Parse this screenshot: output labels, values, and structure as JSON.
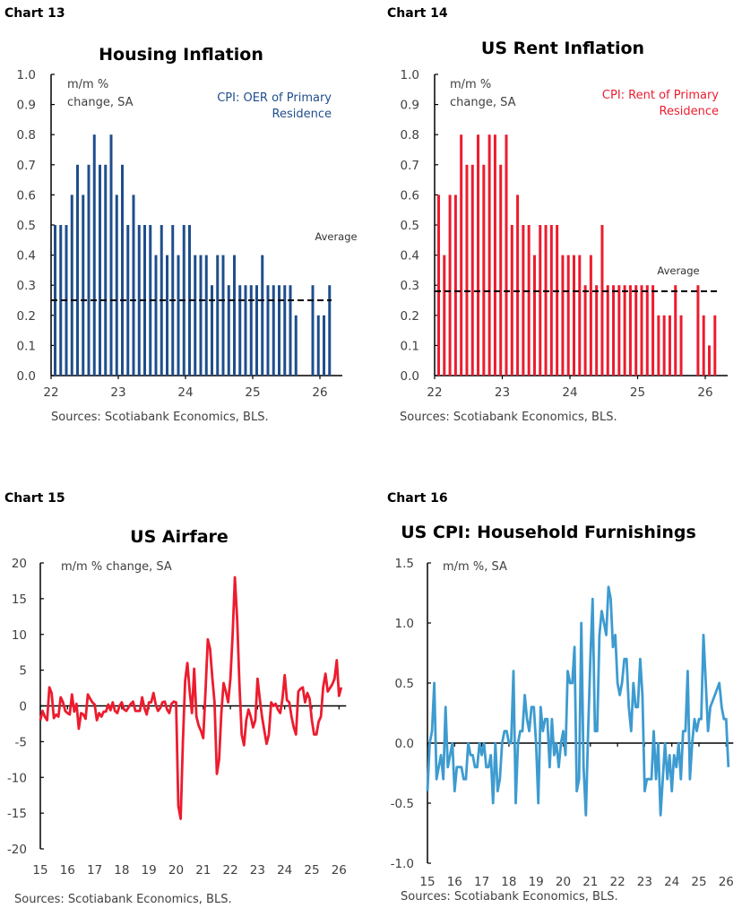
{
  "chart_data": [
    {
      "type": "bar",
      "label": "Chart 13",
      "title": "Housing Inflation",
      "ylabel_lines": [
        "m/m %",
        "change, SA"
      ],
      "legend_lines": [
        "CPI: OER of Primary",
        "Residence"
      ],
      "series_name": "CPI: OER of Primary Residence",
      "average_label": "Average",
      "average": 0.25,
      "source": "Sources: Scotiabank Economics, BLS.",
      "color": "#1f4e8c",
      "ylim": [
        0,
        1.0
      ],
      "yticks": [
        "0.0",
        "0.1",
        "0.2",
        "0.3",
        "0.4",
        "0.5",
        "0.6",
        "0.7",
        "0.8",
        "0.9",
        "1.0"
      ],
      "xticks": [
        "22",
        "23",
        "24",
        "25",
        "26"
      ],
      "frequency": "monthly",
      "values_by_year": {
        "2022": [
          0.5,
          0.5,
          0.5,
          0.6,
          0.7,
          0.6,
          0.7,
          0.8,
          0.7,
          0.7,
          0.8,
          0.6
        ],
        "2023": [
          0.7,
          0.5,
          0.6,
          0.5,
          0.5,
          0.5,
          0.4,
          0.5,
          0.4,
          0.5,
          0.4,
          0.5
        ],
        "2024": [
          0.5,
          0.4,
          0.4,
          0.4,
          0.3,
          0.4,
          0.4,
          0.3,
          0.4,
          0.3,
          0.3,
          0.3
        ],
        "2025": [
          0.3,
          0.4,
          0.3,
          0.3,
          0.3,
          0.3,
          0.3,
          0.2,
          null,
          null,
          0.3,
          0.2
        ],
        "2026": [
          0.2,
          0.3
        ]
      }
    },
    {
      "type": "bar",
      "label": "Chart 14",
      "title": "US Rent Inflation",
      "ylabel_lines": [
        "m/m %",
        "change, SA"
      ],
      "legend_lines": [
        "CPI: Rent of Primary",
        "Residence"
      ],
      "series_name": "CPI: Rent of Primary Residence",
      "average_label": "Average",
      "average": 0.28,
      "source": "Sources: Scotiabank Economics, BLS.",
      "color": "#ec1c2e",
      "ylim": [
        0,
        1.0
      ],
      "yticks": [
        "0.0",
        "0.1",
        "0.2",
        "0.3",
        "0.4",
        "0.5",
        "0.6",
        "0.7",
        "0.8",
        "0.9",
        "1.0"
      ],
      "xticks": [
        "22",
        "23",
        "24",
        "25",
        "26"
      ],
      "frequency": "monthly",
      "values_by_year": {
        "2022": [
          0.6,
          0.4,
          0.6,
          0.6,
          0.8,
          0.7,
          0.7,
          0.8,
          0.7,
          0.8,
          0.8,
          0.7
        ],
        "2023": [
          0.8,
          0.5,
          0.6,
          0.5,
          0.5,
          0.4,
          0.5,
          0.5,
          0.5,
          0.5,
          0.4,
          0.4
        ],
        "2024": [
          0.4,
          0.4,
          0.3,
          0.4,
          0.3,
          0.5,
          0.3,
          0.3,
          0.3,
          0.3,
          0.3,
          0.3
        ],
        "2025": [
          0.3,
          0.3,
          0.3,
          0.2,
          0.2,
          0.2,
          0.3,
          0.2,
          null,
          null,
          0.3,
          0.2
        ],
        "2026": [
          0.1,
          0.2
        ]
      }
    },
    {
      "type": "line",
      "label": "Chart 15",
      "title": "US Airfare",
      "ylabel_lines": [
        "m/m % change, SA"
      ],
      "source": "Sources: Scotiabank Economics, BLS.",
      "color": "#ec1c2e",
      "ylim": [
        -20,
        20
      ],
      "yticks": [
        "-20",
        "-15",
        "-10",
        "-5",
        "0",
        "5",
        "10",
        "15",
        "20"
      ],
      "xticks": [
        "15",
        "16",
        "17",
        "18",
        "19",
        "20",
        "21",
        "22",
        "23",
        "24",
        "25",
        "26"
      ],
      "frequency": "monthly",
      "values_by_year": {
        "2015": [
          -2,
          -0.7,
          -1.5,
          -2,
          2.6,
          1.8,
          -1.7,
          -1.2,
          -1.5,
          1.2,
          0.5,
          -0.7
        ],
        "2016": [
          -1,
          -1.2,
          1.6,
          -0.8,
          0.3,
          -3.2,
          -1,
          -1.2,
          -1.8,
          1.6,
          1,
          0.5
        ],
        "2017": [
          0.2,
          -2,
          -1,
          -1.5,
          -0.8,
          -0.8,
          0.2,
          -0.6,
          0.5,
          -0.7,
          -1,
          0
        ],
        "2018": [
          0.5,
          -0.5,
          -0.7,
          -0.2,
          0.3,
          0.6,
          -0.7,
          -0.7,
          -0.7,
          1.2,
          -0.3,
          -1.2
        ],
        "2019": [
          0.5,
          0.5,
          1.8,
          0.2,
          -0.7,
          -0.3,
          0.5,
          0.6,
          -0.5,
          -1,
          0.3,
          0.6
        ],
        "2020": [
          0.5,
          -14,
          -15.8,
          -5,
          3.5,
          6,
          2,
          -1,
          5.2,
          -1.5,
          -2.8,
          -3.5
        ],
        "2021": [
          -4.5,
          2,
          9.3,
          8,
          4,
          0.5,
          -9.5,
          -7.5,
          -1,
          3.2,
          2,
          0.5
        ],
        "2022": [
          3.8,
          10,
          18,
          12,
          3,
          -4,
          -5.5,
          -2,
          -0.5,
          -1.5,
          -3,
          -2
        ],
        "2023": [
          3.8,
          1,
          -1.5,
          -3.5,
          -5.3,
          -4,
          0.5,
          0,
          0.3,
          -0.5,
          -1,
          1
        ],
        "2024": [
          4.3,
          0.8,
          0.5,
          -1.5,
          -3,
          -4,
          2,
          2.4,
          2.6,
          0.5,
          1.8,
          1
        ],
        "2025": [
          -2,
          -4,
          -4,
          -2.2,
          -1.5,
          2.6,
          4.5,
          2,
          2.5,
          3,
          3.8,
          6.4
        ],
        "2026": [
          1.4,
          2.6
        ]
      }
    },
    {
      "type": "line",
      "label": "Chart 16",
      "title": "US CPI: Household Furnishings",
      "ylabel_lines": [
        "m/m %, SA"
      ],
      "source": "Sources: Scotiabank Economics, BLS.",
      "color": "#3d9bd0",
      "ylim": [
        -1.0,
        1.5
      ],
      "yticks": [
        "-1.0",
        "-0.5",
        "0.0",
        "0.5",
        "1.0",
        "1.5"
      ],
      "xticks": [
        "15",
        "16",
        "17",
        "18",
        "19",
        "20",
        "21",
        "22",
        "23",
        "24",
        "25",
        "26"
      ],
      "frequency": "monthly",
      "values_by_year": {
        "2015": [
          -0.4,
          0,
          0.1,
          0.5,
          -0.3,
          -0.2,
          -0.1,
          -0.3,
          0.3,
          -0.2,
          -0.1,
          0
        ],
        "2016": [
          -0.4,
          -0.2,
          -0.2,
          -0.2,
          -0.3,
          -0.3,
          0,
          -0.1,
          -0.1,
          -0.2,
          -0.2,
          0
        ],
        "2017": [
          -0.1,
          0,
          -0.2,
          -0.2,
          -0.1,
          -0.5,
          0,
          -0.4,
          -0.3,
          0,
          0.1,
          0.1
        ],
        "2018": [
          0,
          0,
          0.6,
          -0.5,
          0,
          0.1,
          0.1,
          0.4,
          0.2,
          0.1,
          0.3,
          0.3
        ],
        "2019": [
          0,
          -0.5,
          0.3,
          0.1,
          0.2,
          0.2,
          -0.2,
          0.2,
          -0.1,
          0,
          -0.2,
          0
        ],
        "2020": [
          0.1,
          -0.1,
          0.6,
          0.5,
          0.5,
          0.8,
          -0.4,
          -0.3,
          1.0,
          -0.2,
          -0.6,
          0.1
        ],
        "2021": [
          0.7,
          1.2,
          0.1,
          0.1,
          0.9,
          1.1,
          1.0,
          0.9,
          1.3,
          1.2,
          0.8,
          0.9
        ],
        "2022": [
          0.5,
          0.4,
          0.5,
          0.7,
          0.7,
          0.3,
          0.1,
          0.5,
          0.3,
          0.3,
          0.7,
          0.4
        ],
        "2023": [
          -0.4,
          -0.3,
          -0.3,
          -0.3,
          0.1,
          -0.3,
          0,
          -0.6,
          -0.3,
          0,
          -0.3,
          -0.1
        ],
        "2024": [
          -0.4,
          -0.1,
          -0.2,
          0,
          -0.3,
          0.1,
          0.1,
          0.6,
          -0.3,
          0,
          0.2,
          0.1
        ],
        "2025": [
          0.2,
          0.2,
          0.9,
          0.5,
          0.1,
          0.3,
          0.35,
          0.4,
          0.45,
          0.5,
          0.3,
          0.2
        ],
        "2026": [
          0.2,
          -0.2
        ]
      }
    }
  ]
}
